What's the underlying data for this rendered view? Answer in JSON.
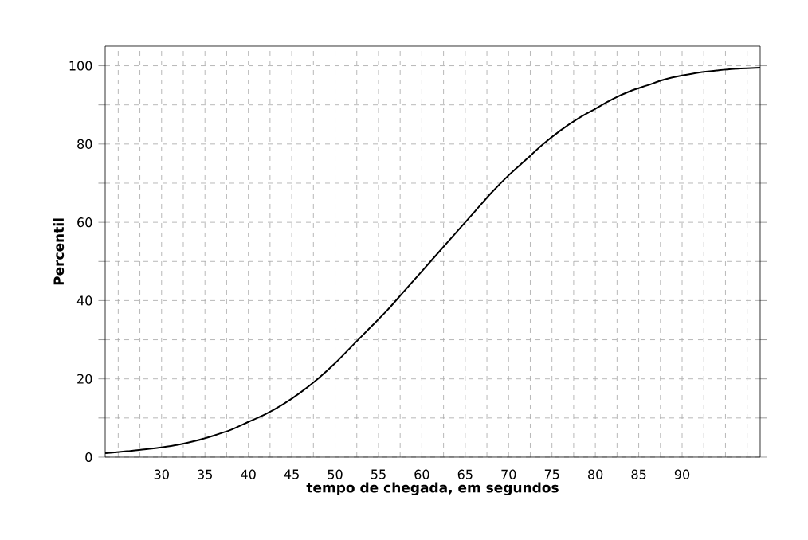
{
  "chart_data": {
    "type": "line",
    "xlabel": "tempo de chegada, em segundos",
    "ylabel": "Percentil",
    "x": [
      23.5,
      26,
      28,
      30,
      32,
      34,
      36,
      38,
      40,
      42,
      44,
      46,
      48,
      50,
      52,
      54,
      56,
      58,
      60,
      62,
      64,
      66,
      68,
      70,
      72,
      74,
      76,
      78,
      80,
      82,
      84,
      86,
      88,
      90,
      92,
      94,
      96,
      99
    ],
    "series": [
      {
        "color": "#000000",
        "values": [
          1,
          1.5,
          2,
          2.5,
          3.2,
          4.2,
          5.5,
          7,
          9,
          11,
          13.5,
          16.5,
          20,
          24,
          28.5,
          33,
          37.5,
          42.5,
          47.5,
          52.5,
          57.5,
          62.5,
          67.5,
          72,
          76,
          80,
          83.5,
          86.5,
          89,
          91.5,
          93.5,
          95,
          96.5,
          97.5,
          98.3,
          98.8,
          99.2,
          99.5
        ]
      }
    ],
    "xlim": [
      23.5,
      99
    ],
    "ylim": [
      0,
      105
    ],
    "xticks": [
      {
        "value": 25,
        "label": null
      },
      {
        "value": 27.5,
        "label": null
      },
      30,
      {
        "value": 32.5,
        "label": null
      },
      35,
      {
        "value": 37.5,
        "label": null
      },
      40,
      {
        "value": 42.5,
        "label": null
      },
      45,
      {
        "value": 47.5,
        "label": null
      },
      50,
      {
        "value": 52.5,
        "label": null
      },
      55,
      {
        "value": 57.5,
        "label": null
      },
      60,
      {
        "value": 62.5,
        "label": null
      },
      65,
      {
        "value": 67.5,
        "label": null
      },
      70,
      {
        "value": 72.5,
        "label": null
      },
      75,
      {
        "value": 77.5,
        "label": null
      },
      80,
      {
        "value": 82.5,
        "label": null
      },
      85,
      {
        "value": 87.5,
        "label": null
      },
      90,
      {
        "value": 92.5,
        "label": null
      },
      {
        "value": 95,
        "label": null
      },
      {
        "value": 97.5,
        "label": null
      }
    ],
    "yticks": [
      0,
      {
        "value": 10,
        "label": null
      },
      20,
      {
        "value": 30,
        "label": null
      },
      40,
      {
        "value": 50,
        "label": null
      },
      60,
      {
        "value": 70,
        "label": null
      },
      80,
      {
        "value": 90,
        "label": null
      },
      100
    ],
    "grid": true,
    "marker": "none",
    "line_style": "solid"
  }
}
